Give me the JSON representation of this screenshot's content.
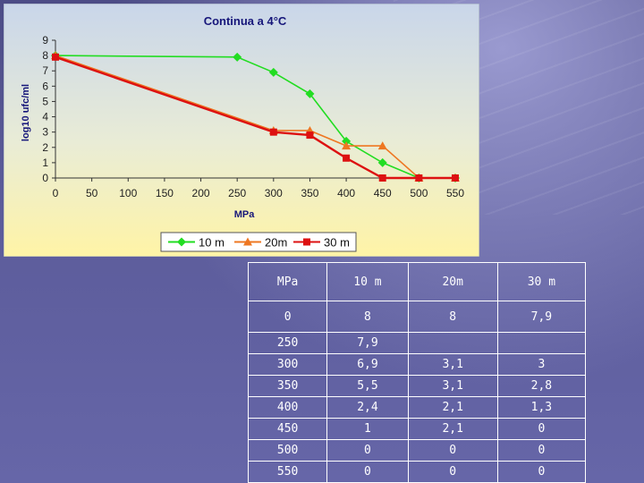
{
  "chart_data": {
    "type": "line",
    "title": "Continua a 4°C",
    "xlabel": "MPa",
    "ylabel": "log10 ufc/ml",
    "xlim": [
      0,
      550
    ],
    "ylim": [
      0,
      9
    ],
    "x_ticks": [
      0,
      50,
      100,
      150,
      200,
      250,
      300,
      350,
      400,
      450,
      500,
      550
    ],
    "y_ticks": [
      0,
      1,
      2,
      3,
      4,
      5,
      6,
      7,
      8,
      9
    ],
    "grid": false,
    "legend_position": "bottom",
    "series": [
      {
        "name": "10 m",
        "color": "#22dd22",
        "marker": "diamond",
        "x": [
          0,
          250,
          300,
          350,
          400,
          450,
          500,
          550
        ],
        "y": [
          8,
          7.9,
          6.9,
          5.5,
          2.4,
          1,
          0,
          0
        ]
      },
      {
        "name": "20m",
        "color": "#ee7722",
        "marker": "triangle",
        "x": [
          0,
          300,
          350,
          400,
          450,
          500,
          550
        ],
        "y": [
          8,
          3.1,
          3.1,
          2.1,
          2.1,
          0,
          0
        ]
      },
      {
        "name": "30 m",
        "color": "#dd1111",
        "marker": "square",
        "x": [
          0,
          300,
          350,
          400,
          450,
          500,
          550
        ],
        "y": [
          7.9,
          3,
          2.8,
          1.3,
          0,
          0,
          0
        ]
      }
    ]
  },
  "table": {
    "headers": [
      "MPa",
      "10 m",
      "20m",
      "30 m"
    ],
    "rows": [
      [
        "0",
        "8",
        "8",
        "7,9"
      ],
      [
        "250",
        "7,9",
        "",
        ""
      ],
      [
        "300",
        "6,9",
        "3,1",
        "3"
      ],
      [
        "350",
        "5,5",
        "3,1",
        "2,8"
      ],
      [
        "400",
        "2,4",
        "2,1",
        "1,3"
      ],
      [
        "450",
        "1",
        "2,1",
        "0"
      ],
      [
        "500",
        "0",
        "0",
        "0"
      ],
      [
        "550",
        "0",
        "0",
        "0"
      ]
    ]
  }
}
